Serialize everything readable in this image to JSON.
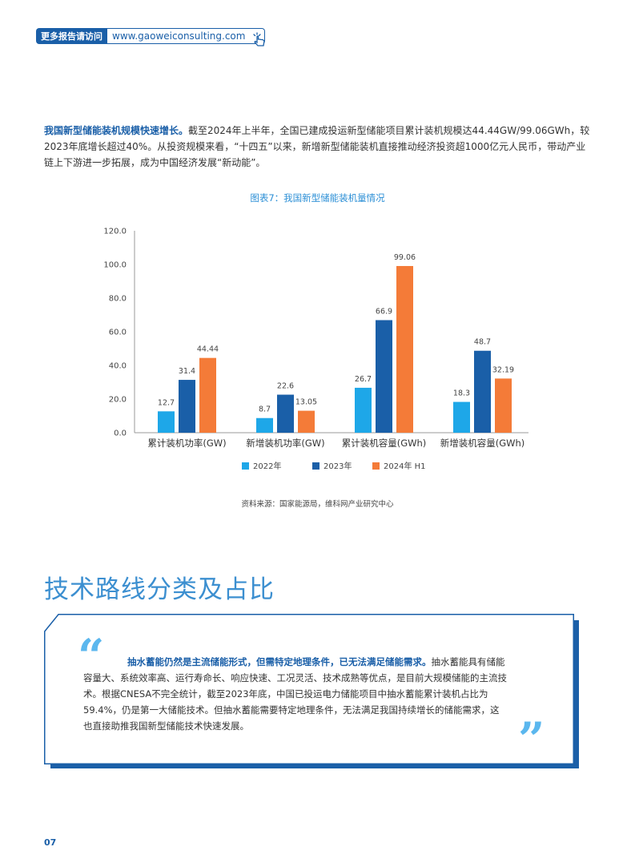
{
  "banner": {
    "label": "更多报告请访问",
    "url": "www.gaoweiconsulting.com"
  },
  "intro": {
    "lead": "我国新型储能装机规模快速增长。",
    "body": "截至2024年上半年，全国已建成投运新型储能项目累计装机规模达44.44GW/99.06GWh，较2023年底增长超过40%。从投资规模来看，“十四五”以来，新增新型储能装机直接推动经济投资超1000亿元人民币，带动产业链上下游进一步拓展，成为中国经济发展“新动能”。"
  },
  "figure": {
    "title": "图表7：我国新型储能装机量情况",
    "source": "资料来源：国家能源局，维科网产业研究中心"
  },
  "chart_data": {
    "type": "bar",
    "categories": [
      "累计装机功率(GW)",
      "新增装机功率(GW)",
      "累计装机容量(GWh)",
      "新增装机容量(GWh)"
    ],
    "series": [
      {
        "name": "2022年",
        "color": "#1ea7e8",
        "values": [
          12.7,
          8.7,
          26.7,
          18.3
        ],
        "labels": [
          "12.7",
          "8.7",
          "26.7",
          "18.3"
        ]
      },
      {
        "name": "2023年",
        "color": "#1a5fa8",
        "values": [
          31.4,
          22.6,
          66.9,
          48.7
        ],
        "labels": [
          "31.4",
          "22.6",
          "66.9",
          "48.7"
        ]
      },
      {
        "name": "2024年 H1",
        "color": "#f47b38",
        "values": [
          44.44,
          13.05,
          99.06,
          32.19
        ],
        "labels": [
          "44.44",
          "13.05",
          "99.06",
          "32.19"
        ]
      }
    ],
    "ylim": [
      0,
      120
    ],
    "yticks": [
      "0.0",
      "20.0",
      "40.0",
      "60.0",
      "80.0",
      "100.0",
      "120.0"
    ],
    "legend": "bottom",
    "grid": false
  },
  "section": {
    "title": "技术路线分类及占比"
  },
  "quote": {
    "open_mark": "“",
    "close_mark": "”",
    "lead": "抽水蓄能仍然是主流储能形式，但需特定地理条件，已无法满足储能需求。",
    "body": "抽水蓄能具有储能容量大、系统效率高、运行寿命长、响应快速、工况灵活、技术成熟等优点，是目前大规模储能的主流技术。根据CNESA不完全统计，截至2023年底，中国已投运电力储能项目中抽水蓄能累计装机占比为59.4%，仍是第一大储能技术。但抽水蓄能需要特定地理条件，无法满足我国持续增长的储能需求，这也直接助推我国新型储能技术快速发展。"
  },
  "page_number": "07"
}
